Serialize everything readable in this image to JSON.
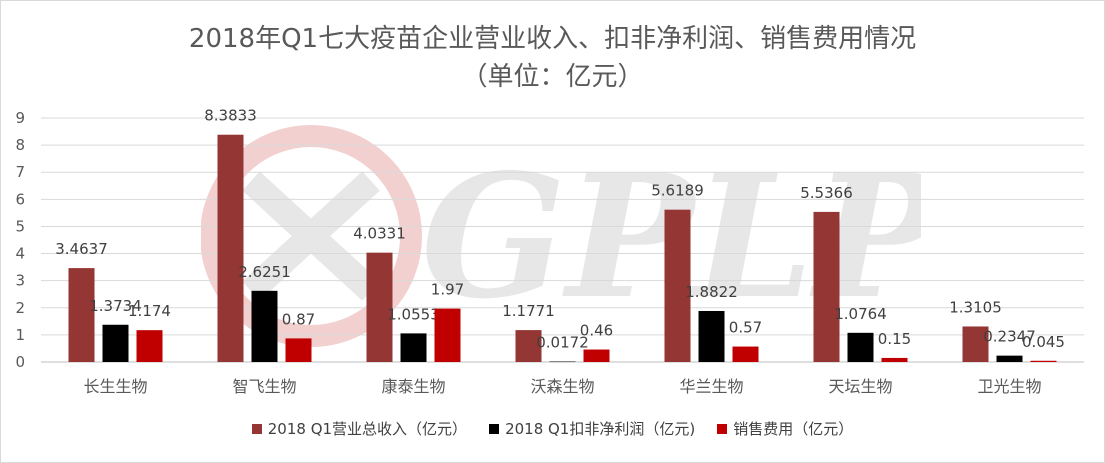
{
  "chart_data": {
    "type": "bar",
    "title": "2018年Q1七大疫苗企业营业收入、扣非净利润、销售费用情况",
    "subtitle": "（单位：亿元）",
    "categories": [
      "长生生物",
      "智飞生物",
      "康泰生物",
      "沃森生物",
      "华兰生物",
      "天坛生物",
      "卫光生物"
    ],
    "series": [
      {
        "name": "2018 Q1营业总收入（亿元）",
        "color": "#943634",
        "values": [
          3.4637,
          8.3833,
          4.0331,
          1.1771,
          5.6189,
          5.5366,
          1.3105
        ],
        "labels": [
          "3.4637",
          "8.3833",
          "4.0331",
          "1.1771",
          "5.6189",
          "5.5366",
          "1.3105"
        ]
      },
      {
        "name": "2018 Q1扣非净利润（亿元)",
        "color": "#000000",
        "values": [
          1.3734,
          2.6251,
          1.0553,
          0.0172,
          1.8822,
          1.0764,
          0.2347
        ],
        "labels": [
          "1.3734",
          "2.6251",
          "1.0553",
          "0.0172",
          "1.8822",
          "1.0764",
          "0.2347"
        ]
      },
      {
        "name": "销售费用（亿元）",
        "color": "#c00000",
        "values": [
          1.174,
          0.87,
          1.97,
          0.46,
          0.57,
          0.15,
          0.045
        ],
        "labels": [
          "1.174",
          "0.87",
          "1.97",
          "0.46",
          "0.57",
          "0.15",
          "0.045"
        ]
      }
    ],
    "yticks": [
      "0",
      "1",
      "2",
      "3",
      "4",
      "5",
      "6",
      "7",
      "8",
      "9"
    ],
    "ylim": [
      0,
      9
    ],
    "grid": true,
    "legend_position": "bottom"
  },
  "watermark": {
    "text": "GPLP",
    "color": "#c00000"
  }
}
